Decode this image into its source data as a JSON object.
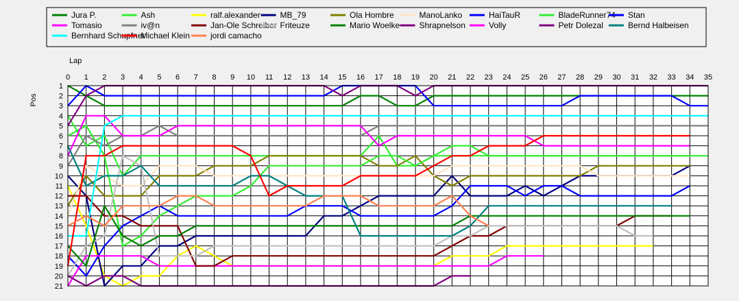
{
  "chart_data": {
    "type": "line",
    "xlabel": "Lap",
    "ylabel": "Pos",
    "xlim": [
      0,
      35
    ],
    "ylim": [
      1,
      21
    ],
    "y_inverted": true,
    "grid": true,
    "legend_position": "top",
    "x_ticks": [
      "0",
      "1",
      "2",
      "3",
      "4",
      "5",
      "6",
      "7",
      "8",
      "9",
      "10",
      "11",
      "12",
      "13",
      "14",
      "15",
      "16",
      "17",
      "18",
      "19",
      "20",
      "21",
      "22",
      "23",
      "24",
      "25",
      "26",
      "27",
      "28",
      "29",
      "30",
      "31",
      "32",
      "33",
      "34",
      "35"
    ],
    "y_ticks": [
      "1",
      "2",
      "3",
      "4",
      "5",
      "6",
      "7",
      "8",
      "9",
      "10",
      "11",
      "12",
      "13",
      "14",
      "15",
      "16",
      "17",
      "18",
      "19",
      "20",
      "21"
    ],
    "series": [
      {
        "name": "Jura P.",
        "color": "#008000",
        "values": [
          1,
          2,
          3,
          3,
          3,
          3,
          3,
          3,
          3,
          3,
          3,
          3,
          3,
          3,
          3,
          3,
          2,
          2,
          3,
          3,
          2,
          2,
          2,
          2,
          2,
          2,
          2,
          2,
          2,
          2,
          2,
          2,
          2,
          2,
          2,
          2
        ]
      },
      {
        "name": "Ash",
        "color": "#33ee33",
        "values": [
          4,
          7,
          6,
          10,
          8,
          8,
          8,
          8,
          8,
          8,
          8,
          8,
          8,
          8,
          8,
          8,
          8,
          6,
          9,
          9,
          8,
          7,
          7,
          8,
          8,
          8,
          8,
          8,
          8,
          8,
          8,
          8,
          8,
          8,
          8,
          8
        ]
      },
      {
        "name": "ralf.alexander",
        "color": "#ffff00",
        "values": [
          11,
          15,
          20,
          21,
          20,
          20,
          18,
          17,
          18,
          19,
          19,
          19,
          19,
          19,
          19,
          19,
          19,
          19,
          19,
          19,
          19,
          18,
          18,
          18,
          17,
          17,
          17,
          17,
          17,
          17,
          17,
          17,
          17
        ]
      },
      {
        "name": "MB_79",
        "color": "#000080",
        "values": [
          10,
          12,
          21,
          19,
          19,
          17,
          17,
          16,
          16,
          16,
          16,
          16,
          16,
          16,
          14,
          14,
          13,
          12,
          12,
          12,
          12,
          10,
          12,
          12,
          12,
          11,
          12,
          11,
          10,
          10,
          10,
          10,
          10,
          10,
          9
        ]
      },
      {
        "name": "Ola Hombre",
        "color": "#808000",
        "values": [
          13,
          10,
          12,
          12,
          12,
          10,
          10,
          10,
          9,
          9,
          9,
          8,
          8,
          8,
          8,
          8,
          8,
          9,
          9,
          8,
          10,
          11,
          10,
          10,
          10,
          10,
          10,
          10,
          10,
          9,
          9,
          9,
          9,
          9,
          9
        ]
      },
      {
        "name": "ManoLanko",
        "color": "#ffe4c4",
        "values": [
          14,
          9,
          10,
          11,
          11,
          9,
          9,
          9,
          10,
          10,
          10,
          10,
          10,
          10,
          10,
          10,
          10,
          10,
          10,
          10,
          10,
          9,
          9,
          9,
          9,
          9,
          9,
          9,
          9,
          10,
          10,
          10,
          10,
          10,
          10
        ]
      },
      {
        "name": "HaiTauR",
        "color": "#0000ff",
        "values": [
          3,
          1,
          2,
          2,
          2,
          2,
          2,
          2,
          2,
          2,
          2,
          2,
          2,
          2,
          2,
          1,
          1,
          1,
          1,
          1,
          3,
          3,
          3,
          3,
          3,
          3,
          3,
          3,
          2,
          2,
          2,
          2,
          2,
          2,
          3,
          3
        ]
      },
      {
        "name": "BladeRunner74",
        "color": "#33ee33",
        "values": [
          6,
          5,
          8,
          17,
          16,
          14,
          13,
          12,
          12,
          12,
          11,
          9,
          9,
          9,
          9,
          9,
          9,
          8,
          8,
          9,
          8,
          8,
          8,
          8,
          8,
          8,
          8,
          8,
          8,
          8,
          8,
          8,
          8,
          8,
          8
        ]
      },
      {
        "name": "Stan",
        "color": "#0000ff",
        "values": [
          18,
          20,
          17,
          15,
          14,
          13,
          14,
          14,
          14,
          14,
          14,
          14,
          14,
          13,
          13,
          13,
          14,
          14,
          14,
          14,
          14,
          13,
          11,
          11,
          11,
          12,
          11,
          11,
          12,
          12,
          12,
          12,
          12,
          12,
          11
        ]
      },
      {
        "name": "Tomasio",
        "color": "#ff00ff",
        "values": [
          21,
          18,
          18,
          18,
          18,
          19,
          19,
          19,
          19,
          19,
          19,
          19,
          19,
          19,
          19,
          19,
          19,
          19,
          19,
          19,
          19,
          19,
          19,
          19,
          18,
          18,
          18
        ]
      },
      {
        "name": "iv@n",
        "color": "#808080",
        "values": [
          9,
          6,
          7,
          6,
          6,
          5,
          6,
          6,
          6,
          6,
          6,
          6,
          6,
          6,
          6,
          6,
          6,
          5,
          5,
          5,
          5,
          5,
          5,
          5,
          5,
          5,
          5,
          5,
          5,
          5,
          5,
          5,
          5,
          5,
          5,
          5
        ]
      },
      {
        "name": "Jan-Ole Schreiber",
        "color": "#800000",
        "values": [
          12,
          12,
          14,
          14,
          15,
          15,
          15,
          19,
          19,
          18,
          18,
          18,
          18,
          18,
          18,
          18,
          18,
          18,
          18,
          18,
          18,
          17,
          16,
          16,
          15,
          15,
          15,
          15,
          15,
          15,
          15,
          14,
          14,
          14
        ]
      },
      {
        "name": "Friteuze",
        "color": "#c0c0c0",
        "values": [
          20,
          17,
          16,
          8,
          9,
          18,
          18,
          18,
          17,
          17,
          17,
          17,
          17,
          17,
          17,
          17,
          17,
          17,
          17,
          17,
          17,
          16,
          16,
          15,
          15,
          15,
          15,
          15,
          15,
          15,
          15,
          16,
          16
        ]
      },
      {
        "name": "Mario Woelke",
        "color": "#008000",
        "values": [
          17,
          19,
          13,
          16,
          17,
          16,
          16,
          15,
          15,
          15,
          15,
          15,
          15,
          15,
          15,
          15,
          15,
          15,
          15,
          15,
          15,
          15,
          14,
          14,
          14,
          14,
          14,
          14,
          14,
          14,
          14,
          14,
          14,
          14,
          14
        ]
      },
      {
        "name": "Shrapnelson",
        "color": "#800080",
        "values": [
          5,
          2,
          1,
          1,
          1,
          1,
          1,
          1,
          1,
          1,
          1,
          1,
          1,
          1,
          1,
          2,
          1,
          1,
          1,
          2,
          1,
          1,
          1,
          1,
          1,
          1,
          1,
          1,
          1,
          1,
          1,
          1,
          1,
          1,
          1,
          1
        ]
      },
      {
        "name": "Volly",
        "color": "#ff00ff",
        "values": [
          8,
          4,
          4,
          6,
          6,
          6,
          5,
          5,
          5,
          5,
          5,
          5,
          5,
          5,
          5,
          5,
          5,
          7,
          6,
          6,
          6,
          6,
          6,
          6,
          6,
          6,
          7,
          7,
          7,
          7,
          7,
          7,
          7,
          7,
          7
        ]
      },
      {
        "name": "Petr Dolezal",
        "color": "#800080",
        "values": [
          20,
          21,
          20,
          20,
          21,
          21,
          21,
          21,
          21,
          21,
          21,
          21,
          21,
          21,
          21,
          21,
          21,
          21,
          21,
          21,
          21,
          20,
          20
        ]
      },
      {
        "name": "Bernd Halbeisen",
        "color": "#008080",
        "values": [
          7,
          11,
          10,
          10,
          9,
          11,
          11,
          11,
          11,
          11,
          10,
          10,
          11,
          12,
          12,
          12,
          16,
          16,
          16,
          16,
          16,
          16,
          15,
          13,
          13,
          13,
          13,
          13,
          13,
          13,
          13,
          13,
          13,
          13
        ]
      },
      {
        "name": "Bernhard Schupfner",
        "color": "#00ffff",
        "values": [
          16,
          16,
          5,
          4,
          4,
          4,
          4,
          4,
          4,
          4,
          4,
          4,
          4,
          4,
          4,
          4,
          4,
          4,
          4,
          4,
          4,
          4,
          4,
          4,
          4,
          4,
          4,
          4,
          4,
          4,
          4,
          4,
          4,
          4,
          4,
          4
        ]
      },
      {
        "name": "Michael Klein",
        "color": "#ff0000",
        "values": [
          19,
          8,
          8,
          7,
          7,
          7,
          7,
          7,
          7,
          7,
          8,
          12,
          11,
          11,
          11,
          11,
          10,
          10,
          10,
          10,
          9,
          8,
          8,
          7,
          7,
          7,
          6,
          6,
          6,
          6,
          6,
          6,
          6,
          6,
          6
        ]
      },
      {
        "name": "jordi camacho",
        "color": "#ff7f50",
        "values": [
          15,
          14,
          15,
          13,
          13,
          13,
          12,
          12,
          13,
          13,
          13,
          13,
          13,
          13,
          12,
          12,
          12,
          13,
          13,
          13,
          13,
          12,
          14,
          15
        ]
      }
    ]
  }
}
